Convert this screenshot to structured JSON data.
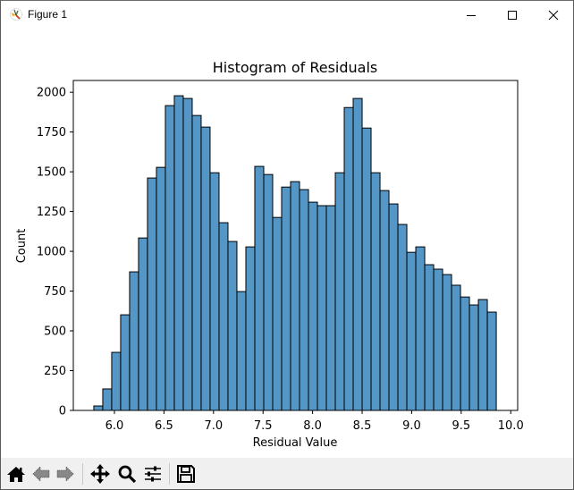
{
  "window": {
    "title": "Figure 1",
    "controls": {
      "minimize": "minimize",
      "maximize": "maximize",
      "close": "close"
    }
  },
  "toolbar": {
    "items": [
      {
        "name": "home",
        "icon": "home-icon"
      },
      {
        "name": "back",
        "icon": "arrow-left-icon"
      },
      {
        "name": "forward",
        "icon": "arrow-right-icon"
      },
      {
        "name": "pan",
        "icon": "move-icon"
      },
      {
        "name": "zoom",
        "icon": "magnifier-icon"
      },
      {
        "name": "configure-subplots",
        "icon": "sliders-icon"
      },
      {
        "name": "save",
        "icon": "floppy-disk-icon"
      }
    ]
  },
  "colors": {
    "bar_fill": "#5497c7",
    "bar_edge": "#000000",
    "toolbar_bg": "#f0f0f0"
  },
  "chart_data": {
    "type": "bar",
    "title": "Histogram of Residuals",
    "xlabel": "Residual Value",
    "ylabel": "Count",
    "xlim": [
      5.585,
      10.07
    ],
    "ylim": [
      0,
      2074
    ],
    "xticks": [
      "6.0",
      "6.5",
      "7.0",
      "7.5",
      "8.0",
      "8.5",
      "9.0",
      "9.5",
      "10.0"
    ],
    "xtick_values": [
      6.0,
      6.5,
      7.0,
      7.5,
      8.0,
      8.5,
      9.0,
      9.5,
      10.0
    ],
    "yticks": [
      "0",
      "250",
      "500",
      "750",
      "1000",
      "1250",
      "1500",
      "1750",
      "2000"
    ],
    "ytick_values": [
      0,
      250,
      500,
      750,
      1000,
      1250,
      1500,
      1750,
      2000
    ],
    "grid": false,
    "legend": null,
    "bin_start": 5.792,
    "bin_end": 9.854,
    "bin_width": 0.0903,
    "values": [
      28,
      135,
      365,
      601,
      871,
      1084,
      1461,
      1528,
      1916,
      1978,
      1961,
      1854,
      1781,
      1494,
      1180,
      1062,
      747,
      1028,
      1534,
      1483,
      1213,
      1404,
      1438,
      1388,
      1309,
      1287,
      1287,
      1494,
      1904,
      1961,
      1775,
      1494,
      1382,
      1298,
      1169,
      994,
      1028,
      916,
      888,
      854,
      787,
      713,
      663,
      697,
      618
    ]
  }
}
